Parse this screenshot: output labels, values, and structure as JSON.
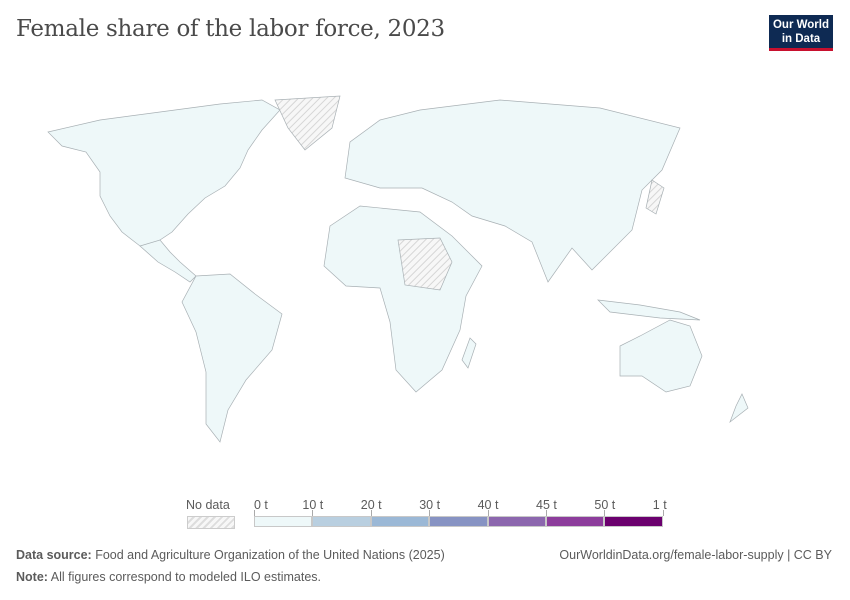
{
  "header": {
    "title": "Female share of the labor force, 2023",
    "logo_line1": "Our World",
    "logo_line2": "in Data"
  },
  "map": {
    "land_fill": "#eef8f9",
    "no_data": "hatched",
    "border": "#b0b0b0"
  },
  "legend": {
    "no_data_label": "No data",
    "ticks": [
      "0 t",
      "10 t",
      "20 t",
      "30 t",
      "40 t",
      "45 t",
      "50 t",
      "1 t"
    ],
    "colors": [
      "#eef8f9",
      "#b9cfe0",
      "#9bb8d6",
      "#8793c3",
      "#8c67ae",
      "#8d3d9c",
      "#6b006e"
    ]
  },
  "footer": {
    "source_label": "Data source:",
    "source_text": "Food and Agriculture Organization of the United Nations (2025)",
    "note_label": "Note:",
    "note_text": "All figures correspond to modeled ILO estimates.",
    "url": "OurWorldinData.org/female-labor-supply | CC BY"
  }
}
